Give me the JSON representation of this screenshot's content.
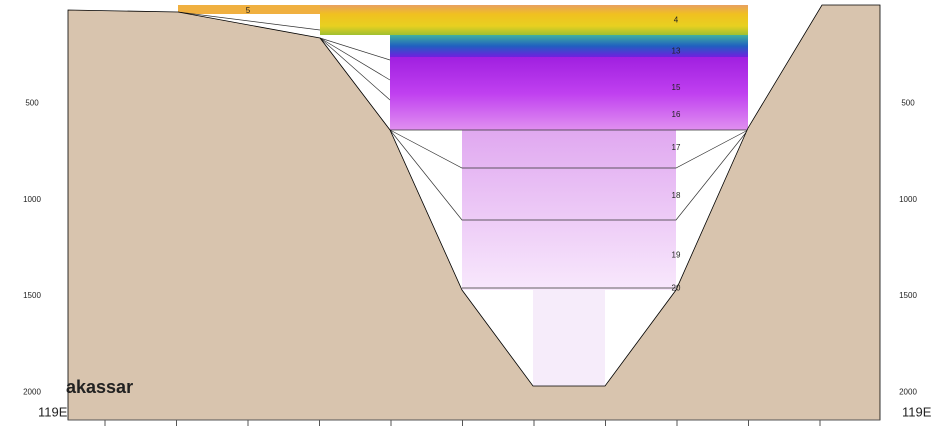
{
  "section": {
    "title": "akassar",
    "longitude_left": "119E",
    "longitude_right": "119E",
    "depth_ticks": [
      500,
      1000,
      1500,
      2000
    ],
    "layer_labels": [
      {
        "text": "5",
        "depth": 20
      },
      {
        "text": "4",
        "depth": 70
      },
      {
        "text": "13",
        "depth": 230
      },
      {
        "text": "15",
        "depth": 420
      },
      {
        "text": "16",
        "depth": 560
      },
      {
        "text": "17",
        "depth": 730
      },
      {
        "text": "18",
        "depth": 980
      },
      {
        "text": "19",
        "depth": 1290
      },
      {
        "text": "20",
        "depth": 1460
      }
    ]
  }
}
